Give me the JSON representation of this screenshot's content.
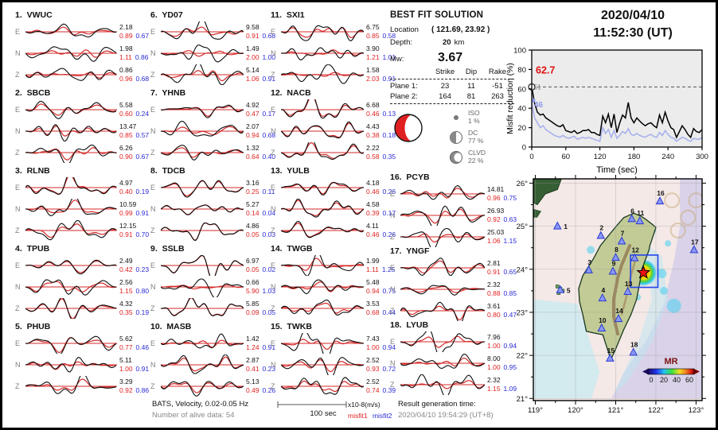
{
  "header": {
    "date": "2020/04/10",
    "time": "11:52:30 (UT)"
  },
  "best_fit": {
    "title": "BEST FIT SOLUTION",
    "location_label": "Location",
    "location_value": "( 121.69,  23.92 )",
    "depth_label": "Depth:",
    "depth_value": "20",
    "depth_unit": "km",
    "mw_label": "Mw:",
    "mw_value": "3.67",
    "table": {
      "headers": [
        "Strike",
        "Dip",
        "Rake"
      ],
      "rows": [
        {
          "label": "Plane 1:",
          "strike": "23",
          "dip": "11",
          "rake": "-51"
        },
        {
          "label": "Plane 2:",
          "strike": "164",
          "dip": "81",
          "rake": "263"
        }
      ]
    },
    "decomposition": [
      {
        "name": "ISO",
        "pct": "1 %"
      },
      {
        "name": "DC",
        "pct": "77 %"
      },
      {
        "name": "CLVD",
        "pct": "22 %"
      }
    ]
  },
  "stations": [
    {
      "id": "1",
      "name": "VWUC",
      "rows": [
        {
          "ch": "E",
          "amp": "2.18",
          "m1": "0.89",
          "m2": "0.67"
        },
        {
          "ch": "N",
          "amp": "1.98",
          "m1": "1.11",
          "m2": "0.86"
        },
        {
          "ch": "Z",
          "amp": "0.86",
          "m1": "0.96",
          "m2": "0.68"
        }
      ]
    },
    {
      "id": "2",
      "name": "SBCB",
      "rows": [
        {
          "ch": "E",
          "amp": "5.58",
          "m1": "0.60",
          "m2": "0.24"
        },
        {
          "ch": "N",
          "amp": "13.47",
          "m1": "0.85",
          "m2": "0.57"
        },
        {
          "ch": "Z",
          "amp": "6.26",
          "m1": "0.90",
          "m2": "0.67"
        }
      ]
    },
    {
      "id": "3",
      "name": "RLNB",
      "rows": [
        {
          "ch": "E",
          "amp": "4.97",
          "m1": "0.40",
          "m2": "0.19"
        },
        {
          "ch": "N",
          "amp": "10.59",
          "m1": "0.99",
          "m2": "0.91"
        },
        {
          "ch": "Z",
          "amp": "12.15",
          "m1": "0.91",
          "m2": "0.70"
        }
      ]
    },
    {
      "id": "4",
      "name": "TPUB",
      "rows": [
        {
          "ch": "E",
          "amp": "2.49",
          "m1": "0.42",
          "m2": "0.23"
        },
        {
          "ch": "N",
          "amp": "2.56",
          "m1": "1.15",
          "m2": "0.80"
        },
        {
          "ch": "Z",
          "amp": "4.32",
          "m1": "0.35",
          "m2": "0.19"
        }
      ]
    },
    {
      "id": "5",
      "name": "PHUB",
      "rows": [
        {
          "ch": "E",
          "amp": "5.62",
          "m1": "0.77",
          "m2": "0.46"
        },
        {
          "ch": "N",
          "amp": "5.11",
          "m1": "1.00",
          "m2": "0.91"
        },
        {
          "ch": "Z",
          "amp": "3.29",
          "m1": "0.92",
          "m2": "0.86"
        }
      ]
    },
    {
      "id": "6",
      "name": "YD07",
      "rows": [
        {
          "ch": "E",
          "amp": "9.58",
          "m1": "0.91",
          "m2": "0.68"
        },
        {
          "ch": "N",
          "amp": "1.49",
          "m1": "2.00",
          "m2": "1.00"
        },
        {
          "ch": "Z",
          "amp": "5.14",
          "m1": "1.06",
          "m2": "0.91"
        }
      ]
    },
    {
      "id": "7",
      "name": "YHNB",
      "rows": [
        {
          "ch": "E",
          "amp": "4.92",
          "m1": "0.47",
          "m2": "0.17"
        },
        {
          "ch": "N",
          "amp": "2.07",
          "m1": "0.94",
          "m2": "0.68"
        },
        {
          "ch": "Z",
          "amp": "1.32",
          "m1": "0.64",
          "m2": "0.40"
        }
      ]
    },
    {
      "id": "8",
      "name": "TDCB",
      "rows": [
        {
          "ch": "E",
          "amp": "3.16",
          "m1": "0.25",
          "m2": "0.11"
        },
        {
          "ch": "N",
          "amp": "5.27",
          "m1": "0.14",
          "m2": "0.04"
        },
        {
          "ch": "Z",
          "amp": "4.86",
          "m1": "0.05",
          "m2": "0.03"
        }
      ]
    },
    {
      "id": "9",
      "name": "SSLB",
      "rows": [
        {
          "ch": "E",
          "amp": "6.97",
          "m1": "0.05",
          "m2": "0.02"
        },
        {
          "ch": "N",
          "amp": "0.66",
          "m1": "5.90",
          "m2": "1.03"
        },
        {
          "ch": "Z",
          "amp": "5.85",
          "m1": "0.09",
          "m2": "0.05"
        }
      ]
    },
    {
      "id": "10",
      "name": "MASB",
      "rows": [
        {
          "ch": "E",
          "amp": "1.42",
          "m1": "1.24",
          "m2": "0.91"
        },
        {
          "ch": "N",
          "amp": "2.87",
          "m1": "0.41",
          "m2": "0.23"
        },
        {
          "ch": "Z",
          "amp": "5.13",
          "m1": "0.49",
          "m2": "0.26"
        }
      ]
    },
    {
      "id": "11",
      "name": "SXI1",
      "rows": [
        {
          "ch": "E",
          "amp": "6.75",
          "m1": "0.85",
          "m2": "0.58"
        },
        {
          "ch": "N",
          "amp": "3.90",
          "m1": "1.21",
          "m2": "1.01"
        },
        {
          "ch": "Z",
          "amp": "1.58",
          "m1": "2.03",
          "m2": "0.91"
        }
      ]
    },
    {
      "id": "12",
      "name": "NACB",
      "rows": [
        {
          "ch": "E",
          "amp": "6.68",
          "m1": "0.46",
          "m2": "0.13"
        },
        {
          "ch": "N",
          "amp": "4.43",
          "m1": "0.38",
          "m2": "0.18"
        },
        {
          "ch": "Z",
          "amp": "2.22",
          "m1": "0.58",
          "m2": "0.35"
        }
      ]
    },
    {
      "id": "13",
      "name": "YULB",
      "rows": [
        {
          "ch": "E",
          "amp": "4.18",
          "m1": "0.46",
          "m2": "0.26"
        },
        {
          "ch": "N",
          "amp": "4.58",
          "m1": "0.39",
          "m2": "0.17"
        },
        {
          "ch": "Z",
          "amp": "4.11",
          "m1": "0.46",
          "m2": "0.26"
        }
      ]
    },
    {
      "id": "14",
      "name": "TWGB",
      "rows": [
        {
          "ch": "E",
          "amp": "1.99",
          "m1": "1.11",
          "m2": "1.25"
        },
        {
          "ch": "N",
          "amp": "5.48",
          "m1": "0.94",
          "m2": "0.75"
        },
        {
          "ch": "Z",
          "amp": "3.53",
          "m1": "0.68",
          "m2": "0.44"
        }
      ]
    },
    {
      "id": "15",
      "name": "TWKB",
      "rows": [
        {
          "ch": "E",
          "amp": "7.43",
          "m1": "1.00",
          "m2": "0.94"
        },
        {
          "ch": "N",
          "amp": "2.52",
          "m1": "0.93",
          "m2": "0.72"
        },
        {
          "ch": "Z",
          "amp": "2.52",
          "m1": "0.74",
          "m2": "0.39"
        }
      ]
    },
    {
      "id": "16",
      "name": "PCYB",
      "rows": [
        {
          "ch": "E",
          "amp": "14.81",
          "m1": "0.96",
          "m2": "0.75"
        },
        {
          "ch": "N",
          "amp": "26.93",
          "m1": "0.92",
          "m2": "0.63"
        },
        {
          "ch": "Z",
          "amp": "25.03",
          "m1": "1.06",
          "m2": "1.15"
        }
      ]
    },
    {
      "id": "17",
      "name": "YNGF",
      "rows": [
        {
          "ch": "E",
          "amp": "2.81",
          "m1": "0.91",
          "m2": "0.65"
        },
        {
          "ch": "N",
          "amp": "2.32",
          "m1": "0.88",
          "m2": "0.85"
        },
        {
          "ch": "Z",
          "amp": "3.61",
          "m1": "0.80",
          "m2": "0.47"
        }
      ]
    },
    {
      "id": "18",
      "name": "LYUB",
      "rows": [
        {
          "ch": "E",
          "amp": "7.96",
          "m1": "1.00",
          "m2": "0.94"
        },
        {
          "ch": "N",
          "amp": "8.00",
          "m1": "1.00",
          "m2": "0.95"
        },
        {
          "ch": "Z",
          "amp": "2.32",
          "m1": "1.15",
          "m2": "1.09"
        }
      ]
    }
  ],
  "footer": {
    "line1": "BATS, Velocity, 0.02-0.05 Hz",
    "line2": "Number of alive data: 54",
    "scalebar": "100 sec",
    "units": "x10-8(m/s)",
    "misfit1": "misfit1",
    "misfit2": "misfit2",
    "result_label": "Result generation time:",
    "result_value": "2020/04/10 19:54:29 (UT+8)"
  },
  "colors": {
    "misfit1_text": "#e32222",
    "misfit2_text": "#2b2bd6",
    "observed_trace": "#0d0d0d",
    "synthetic_trace": "#d42a2a",
    "chart_line_black": "#000000",
    "chart_line_blue": "#a9b2ec",
    "beachball_red": "#e02020",
    "epicenter_red": "#ee1111",
    "station_triangle": "#8a97f5"
  },
  "chart_data": [
    {
      "type": "line",
      "title": "",
      "xlabel": "Time (sec)",
      "ylabel": "Misfit reduction (%)",
      "xlim": [
        0,
        300
      ],
      "ylim": [
        0,
        100
      ],
      "xticks": [
        0,
        60,
        120,
        180,
        240,
        300
      ],
      "yticks": [
        0,
        20,
        40,
        60,
        80,
        100
      ],
      "grid": false,
      "legend": "none",
      "annotations": {
        "best_value": "62.7",
        "gray_value": "51",
        "blue_value": "46",
        "dashed_y": 62
      },
      "x": [
        0,
        5,
        10,
        15,
        20,
        25,
        30,
        35,
        40,
        45,
        50,
        55,
        60,
        65,
        70,
        75,
        80,
        85,
        90,
        95,
        100,
        105,
        110,
        115,
        120,
        125,
        130,
        135,
        140,
        145,
        150,
        155,
        160,
        165,
        170,
        175,
        180,
        185,
        190,
        195,
        200,
        205,
        210,
        215,
        220,
        225,
        230,
        235,
        240,
        245,
        250,
        255,
        260,
        265,
        270,
        275,
        280,
        285,
        290,
        295,
        300
      ],
      "series": [
        {
          "name": "misfit reduction (best depth)",
          "color": "#000000",
          "values": [
            62,
            45,
            36,
            33,
            34,
            30,
            28,
            26,
            24,
            22,
            21,
            23,
            17,
            16,
            15,
            17,
            14,
            15,
            17,
            17,
            18,
            15,
            15,
            13,
            12,
            32,
            25,
            34,
            20,
            34,
            15,
            25,
            33,
            30,
            46,
            30,
            25,
            30,
            27,
            24,
            22,
            24,
            25,
            22,
            20,
            33,
            25,
            36,
            27,
            20,
            18,
            10,
            16,
            22,
            18,
            13,
            10,
            19,
            16,
            15,
            18
          ]
        },
        {
          "name": "misfit reduction (reference)",
          "color": "#a9b2ec",
          "values": [
            46,
            30,
            25,
            20,
            22,
            18,
            16,
            14,
            12,
            11,
            10,
            12,
            10,
            9,
            10,
            11,
            8,
            9,
            10,
            9,
            10,
            9,
            8,
            7,
            6,
            20,
            14,
            18,
            10,
            17,
            9,
            12,
            16,
            14,
            19,
            13,
            12,
            14,
            12,
            11,
            10,
            12,
            13,
            11,
            10,
            15,
            12,
            17,
            13,
            10,
            9,
            6,
            8,
            10,
            9,
            7,
            6,
            9,
            8,
            8,
            10
          ]
        }
      ]
    },
    {
      "type": "map",
      "region": "Taiwan",
      "lon_range": [
        119,
        123
      ],
      "lat_range": [
        21,
        26
      ],
      "lon_ticks": [
        "119°",
        "120°",
        "121°",
        "122°",
        "123°"
      ],
      "lat_ticks": [
        "26°",
        "25°",
        "24°",
        "23°",
        "22°",
        "21°"
      ],
      "epicenter": {
        "lon": 121.69,
        "lat": 23.92
      },
      "search_box": {
        "lon": [
          121.37,
          122.05
        ],
        "lat": [
          23.58,
          24.33
        ]
      },
      "colorbar": {
        "label": "MR",
        "ticks": [
          "0",
          "20",
          "40",
          "60"
        ]
      },
      "stations": [
        {
          "id": "1",
          "lon": 119.55,
          "lat": 25.0
        },
        {
          "id": "2",
          "lon": 120.63,
          "lat": 24.78
        },
        {
          "id": "3",
          "lon": 120.33,
          "lat": 23.98
        },
        {
          "id": "4",
          "lon": 120.67,
          "lat": 23.33
        },
        {
          "id": "5",
          "lon": 119.62,
          "lat": 23.52
        },
        {
          "id": "6",
          "lon": 121.4,
          "lat": 25.17
        },
        {
          "id": "7",
          "lon": 121.15,
          "lat": 24.65
        },
        {
          "id": "8",
          "lon": 121.0,
          "lat": 24.27
        },
        {
          "id": "9",
          "lon": 120.93,
          "lat": 23.95
        },
        {
          "id": "10",
          "lon": 120.65,
          "lat": 22.63
        },
        {
          "id": "11",
          "lon": 121.6,
          "lat": 25.12
        },
        {
          "id": "12",
          "lon": 121.47,
          "lat": 24.26
        },
        {
          "id": "13",
          "lon": 121.3,
          "lat": 23.48
        },
        {
          "id": "14",
          "lon": 121.07,
          "lat": 22.85
        },
        {
          "id": "15",
          "lon": 120.86,
          "lat": 21.93
        },
        {
          "id": "16",
          "lon": 122.1,
          "lat": 25.58
        },
        {
          "id": "17",
          "lon": 122.95,
          "lat": 24.45
        },
        {
          "id": "18",
          "lon": 121.44,
          "lat": 22.07
        }
      ]
    }
  ]
}
